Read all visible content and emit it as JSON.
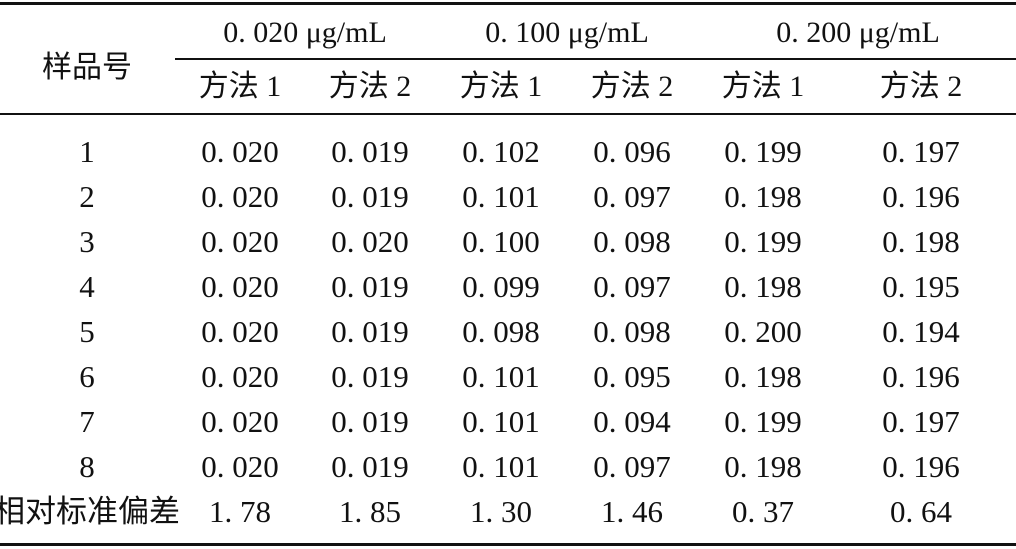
{
  "table": {
    "stub_header": "样品号",
    "groups": [
      "0. 020  μg/mL",
      "0. 100  μg/mL",
      "0. 200  μg/mL"
    ],
    "methods": [
      "方法 1",
      "方法 2",
      "方法 1",
      "方法 2",
      "方法 1",
      "方法 2"
    ],
    "rows": [
      {
        "label": "1",
        "values": [
          "0. 020",
          "0. 019",
          "0. 102",
          "0. 096",
          "0. 199",
          "0. 197"
        ]
      },
      {
        "label": "2",
        "values": [
          "0. 020",
          "0. 019",
          "0. 101",
          "0. 097",
          "0. 198",
          "0. 196"
        ]
      },
      {
        "label": "3",
        "values": [
          "0. 020",
          "0. 020",
          "0. 100",
          "0. 098",
          "0. 199",
          "0. 198"
        ]
      },
      {
        "label": "4",
        "values": [
          "0. 020",
          "0. 019",
          "0. 099",
          "0. 097",
          "0. 198",
          "0. 195"
        ]
      },
      {
        "label": "5",
        "values": [
          "0. 020",
          "0. 019",
          "0. 098",
          "0. 098",
          "0. 200",
          "0. 194"
        ]
      },
      {
        "label": "6",
        "values": [
          "0. 020",
          "0. 019",
          "0. 101",
          "0. 095",
          "0. 198",
          "0. 196"
        ]
      },
      {
        "label": "7",
        "values": [
          "0. 020",
          "0. 019",
          "0. 101",
          "0. 094",
          "0. 199",
          "0. 197"
        ]
      },
      {
        "label": "8",
        "values": [
          "0. 020",
          "0. 019",
          "0. 101",
          "0. 097",
          "0. 198",
          "0. 196"
        ]
      },
      {
        "label": "相对标准偏差",
        "values": [
          "1. 78",
          "1. 85",
          "1. 30",
          "1. 46",
          "0. 37",
          "0. 64"
        ]
      }
    ]
  }
}
